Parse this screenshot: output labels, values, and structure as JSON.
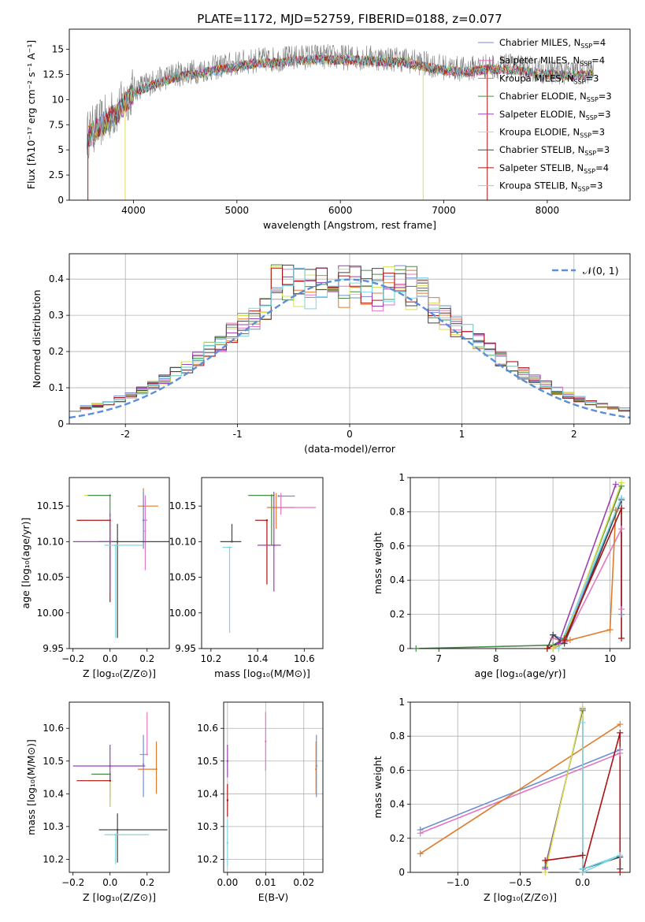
{
  "figure_title": "PLATE=1172, MJD=52759, FIBERID=0188, z=0.077",
  "colors": {
    "Chabrier MILES": "#6f8fd6",
    "Salpeter MILES": "#e377c2",
    "Kroupa MILES": "#e07b2b",
    "Chabrier ELODIE": "#4a8c4a",
    "Salpeter ELODIE": "#9b3fb5",
    "Kroupa ELODIE": "#d8e050",
    "Chabrier STELIB": "#444444",
    "Salpeter STELIB": "#b01010",
    "Kroupa STELIB": "#78d8e8",
    "normal_curve": "#5b8fd9",
    "spectrum_gray": "#808080"
  },
  "chart_data": [
    {
      "id": "spectrum",
      "type": "line",
      "xlabel": "wavelength [Angstrom, rest frame]",
      "ylabel": "Flux [fλ10⁻¹⁷ erg cm⁻² s⁻¹ A⁻¹]",
      "xlim": [
        3380,
        8800
      ],
      "ylim": [
        0,
        17
      ],
      "xticks": [
        4000,
        5000,
        6000,
        7000,
        8000
      ],
      "yticks": [
        0.0,
        2.5,
        5.0,
        7.5,
        10.0,
        12.5,
        15.0
      ],
      "grid": false,
      "legend_position": "right",
      "legend": [
        {
          "label": "Chabrier MILES, N",
          "sub": "SSP",
          "tail": "=4",
          "color_key": "Chabrier MILES"
        },
        {
          "label": "Salpeter MILES, N",
          "sub": "SSP",
          "tail": "=4",
          "color_key": "Salpeter MILES"
        },
        {
          "label": "Kroupa MILES, N",
          "sub": "SSP",
          "tail": "=3",
          "color_key": "Kroupa MILES"
        },
        {
          "label": "Chabrier ELODIE, N",
          "sub": "SSP",
          "tail": "=3",
          "color_key": "Chabrier ELODIE"
        },
        {
          "label": "Salpeter ELODIE, N",
          "sub": "SSP",
          "tail": "=3",
          "color_key": "Salpeter ELODIE"
        },
        {
          "label": "Kroupa ELODIE, N",
          "sub": "SSP",
          "tail": "=3",
          "color_key": "Kroupa ELODIE"
        },
        {
          "label": "Chabrier STELIB, N",
          "sub": "SSP",
          "tail": "=3",
          "color_key": "Chabrier STELIB"
        },
        {
          "label": "Salpeter STELIB, N",
          "sub": "SSP",
          "tail": "=4",
          "color_key": "Salpeter STELIB"
        },
        {
          "label": "Kroupa STELIB, N",
          "sub": "SSP",
          "tail": "=3",
          "color_key": "Kroupa STELIB"
        }
      ],
      "continuum_x": [
        3550,
        3700,
        3850,
        4000,
        4200,
        4400,
        4600,
        4800,
        5000,
        5200,
        5400,
        5600,
        5800,
        6000,
        6200,
        6400,
        6600,
        6800,
        7000,
        7200,
        7400,
        7600,
        7800,
        8000,
        8200,
        8400
      ],
      "continuum_y": [
        6.5,
        7.8,
        9.0,
        11.0,
        11.8,
        12.5,
        12.8,
        13.2,
        13.6,
        13.9,
        14.0,
        14.2,
        14.3,
        14.2,
        14.2,
        14.1,
        14.0,
        13.6,
        13.2,
        13.0,
        13.3,
        13.3,
        13.1,
        12.8,
        12.7,
        12.8
      ],
      "dropouts": [
        {
          "x": 3560,
          "color_key": "Salpeter STELIB"
        },
        {
          "x": 3920,
          "color_key": "Kroupa ELODIE"
        },
        {
          "x": 6800,
          "color_key": "Kroupa ELODIE"
        },
        {
          "x": 7420,
          "color_key": "Salpeter STELIB"
        }
      ]
    },
    {
      "id": "residuals",
      "type": "line",
      "xlabel": "(data-model)/error",
      "ylabel": "Normed distribution",
      "xlim": [
        -2.5,
        2.5
      ],
      "ylim": [
        0,
        0.47
      ],
      "xticks": [
        -2,
        -1,
        0,
        1,
        2
      ],
      "yticks": [
        0.0,
        0.1,
        0.2,
        0.3,
        0.4
      ],
      "grid": true,
      "legend_position": "top-right",
      "normal_label": "𝒩(0, 1)",
      "bin_width": 0.1,
      "bin_start": -2.5
    },
    {
      "id": "age_vs_Z",
      "type": "scatter",
      "xlabel": "Z [log₁₀(Z/Z⊙)]",
      "ylabel": "age  [log₁₀(age/yr)]",
      "xlim": [
        -0.22,
        0.32
      ],
      "ylim": [
        9.95,
        10.19
      ],
      "xticks": [
        -0.2,
        0.0,
        0.2
      ],
      "xticklabels": [
        "−0.2",
        "0.0",
        "0.2"
      ],
      "yticks": [
        9.95,
        10.0,
        10.05,
        10.1,
        10.15
      ],
      "yticklabels": [
        "9.95",
        "10.00",
        "10.05",
        "10.10",
        "10.15"
      ],
      "grid": false,
      "points": [
        {
          "x": 0.0,
          "y": 10.165,
          "xerr": [
            0.14,
            0.0
          ],
          "yerr": [
            0.0,
            0.0
          ],
          "color_key": "Kroupa ELODIE"
        },
        {
          "x": 0.0,
          "y": 10.165,
          "xerr": [
            0.12,
            0.0
          ],
          "yerr": [
            0.03,
            0.0
          ],
          "color_key": "Chabrier ELODIE"
        },
        {
          "x": 0.18,
          "y": 10.15,
          "xerr": [
            0.03,
            0.08
          ],
          "yerr": [
            0.06,
            0.025
          ],
          "color_key": "Kroupa MILES"
        },
        {
          "x": 0.18,
          "y": 10.13,
          "xerr": [
            0.0,
            0.02
          ],
          "yerr": [
            0.04,
            0.04
          ],
          "color_key": "Chabrier MILES"
        },
        {
          "x": 0.19,
          "y": 10.115,
          "xerr": [
            0.0,
            0.0
          ],
          "yerr": [
            0.055,
            0.05
          ],
          "color_key": "Salpeter MILES"
        },
        {
          "x": 0.0,
          "y": 10.13,
          "xerr": [
            0.18,
            0.0
          ],
          "yerr": [
            0.115,
            0.0
          ],
          "color_key": "Salpeter STELIB"
        },
        {
          "x": 0.04,
          "y": 10.1,
          "xerr": [
            0.1,
            0.29
          ],
          "yerr": [
            0.135,
            0.025
          ],
          "color_key": "Chabrier STELIB"
        },
        {
          "x": 0.0,
          "y": 10.1,
          "xerr": [
            0.2,
            0.01
          ],
          "yerr": [
            0.07,
            0.04
          ],
          "color_key": "Salpeter ELODIE"
        },
        {
          "x": 0.03,
          "y": 10.095,
          "xerr": [
            0.06,
            0.15
          ],
          "yerr": [
            0.13,
            0.0
          ],
          "color_key": "Kroupa STELIB"
        }
      ]
    },
    {
      "id": "age_vs_mass",
      "type": "scatter",
      "xlabel": "mass [log₁₀(M/M⊙)]",
      "ylabel": "",
      "xlim": [
        10.16,
        10.68
      ],
      "ylim": [
        9.95,
        10.19
      ],
      "xticks": [
        10.2,
        10.4,
        10.6
      ],
      "xticklabels": [
        "10.2",
        "10.4",
        "10.6"
      ],
      "yticks": [
        9.95,
        10.0,
        10.05,
        10.1,
        10.15
      ],
      "yticklabels": [
        "9.95",
        "10.00",
        "10.05",
        "10.10",
        "10.15"
      ],
      "grid": false,
      "points": [
        {
          "x": 10.47,
          "y": 10.165,
          "xerr": [
            0.1,
            0.0
          ],
          "yerr": [
            0.0,
            0.0
          ],
          "color_key": "Kroupa ELODIE"
        },
        {
          "x": 10.46,
          "y": 10.165,
          "xerr": [
            0.1,
            0.01
          ],
          "yerr": [
            0.07,
            0.0
          ],
          "color_key": "Chabrier ELODIE"
        },
        {
          "x": 10.48,
          "y": 10.148,
          "xerr": [
            0.04,
            0.08
          ],
          "yerr": [
            0.03,
            0.02
          ],
          "color_key": "Kroupa MILES"
        },
        {
          "x": 10.5,
          "y": 10.148,
          "xerr": [
            0.02,
            0.15
          ],
          "yerr": [
            0.01,
            0.02
          ],
          "color_key": "Salpeter MILES"
        },
        {
          "x": 10.49,
          "y": 10.164,
          "xerr": [
            0.0,
            0.07
          ],
          "yerr": [
            0.0,
            0.0
          ],
          "color_key": "Chabrier MILES"
        },
        {
          "x": 10.44,
          "y": 10.13,
          "xerr": [
            0.05,
            0.0
          ],
          "yerr": [
            0.09,
            0.0
          ],
          "color_key": "Salpeter STELIB"
        },
        {
          "x": 10.29,
          "y": 10.1,
          "xerr": [
            0.05,
            0.04
          ],
          "yerr": [
            0.0,
            0.025
          ],
          "color_key": "Chabrier STELIB"
        },
        {
          "x": 10.47,
          "y": 10.095,
          "xerr": [
            0.07,
            0.03
          ],
          "yerr": [
            0.065,
            0.075
          ],
          "color_key": "Salpeter ELODIE"
        },
        {
          "x": 10.28,
          "y": 10.092,
          "xerr": [
            0.03,
            0.01
          ],
          "yerr": [
            0.12,
            0.0
          ],
          "color_key": "Kroupa STELIB"
        }
      ]
    },
    {
      "id": "mass_weight_vs_age",
      "type": "line",
      "xlabel": "age  [log₁₀(age/yr)]",
      "ylabel": "mass weight",
      "xlim": [
        6.5,
        10.35
      ],
      "ylim": [
        0,
        1.0
      ],
      "xticks": [
        7,
        8,
        9,
        10
      ],
      "yticks": [
        0.0,
        0.2,
        0.4,
        0.6,
        0.8,
        1.0
      ],
      "grid": true,
      "series": [
        {
          "color_key": "Chabrier MILES",
          "x": [
            9.0,
            9.2,
            10.2,
            10.2
          ],
          "y": [
            0.08,
            0.05,
            0.88,
            0.2
          ]
        },
        {
          "color_key": "Salpeter MILES",
          "x": [
            9.0,
            9.2,
            10.2,
            10.2
          ],
          "y": [
            0.06,
            0.04,
            0.7,
            0.23
          ]
        },
        {
          "color_key": "Kroupa MILES",
          "x": [
            9.0,
            9.3,
            10.0,
            10.1
          ],
          "y": [
            0.0,
            0.05,
            0.11,
            0.81
          ]
        },
        {
          "color_key": "Chabrier ELODIE",
          "x": [
            6.6,
            9.0,
            9.2,
            10.2
          ],
          "y": [
            0.0,
            0.02,
            0.06,
            0.95
          ]
        },
        {
          "color_key": "Salpeter ELODIE",
          "x": [
            9.0,
            9.1,
            10.1
          ],
          "y": [
            0.0,
            0.03,
            0.96
          ]
        },
        {
          "color_key": "Kroupa ELODIE",
          "x": [
            9.0,
            9.2,
            10.2
          ],
          "y": [
            0.0,
            0.05,
            0.97
          ]
        },
        {
          "color_key": "Chabrier STELIB",
          "x": [
            8.9,
            9.0,
            9.2,
            10.2
          ],
          "y": [
            0.0,
            0.08,
            0.03,
            0.87
          ]
        },
        {
          "color_key": "Salpeter STELIB",
          "x": [
            8.9,
            9.2,
            10.2,
            10.2
          ],
          "y": [
            0.0,
            0.05,
            0.82,
            0.06
          ]
        },
        {
          "color_key": "Kroupa STELIB",
          "x": [
            9.1,
            10.2
          ],
          "y": [
            0.0,
            0.88
          ]
        }
      ]
    },
    {
      "id": "mass_vs_Z",
      "type": "scatter",
      "xlabel": "Z [log₁₀(Z/Z⊙)]",
      "ylabel": "mass [log₁₀(M/M⊙)]",
      "xlim": [
        -0.22,
        0.32
      ],
      "ylim": [
        10.16,
        10.68
      ],
      "xticks": [
        -0.2,
        0.0,
        0.2
      ],
      "xticklabels": [
        "−0.2",
        "0.0",
        "0.2"
      ],
      "yticks": [
        10.2,
        10.3,
        10.4,
        10.5,
        10.6
      ],
      "yticklabels": [
        "10.2",
        "10.3",
        "10.4",
        "10.5",
        "10.6"
      ],
      "grid": false,
      "points": [
        {
          "x": 0.2,
          "y": 10.52,
          "xerr": [
            0.04,
            0.0
          ],
          "yerr": [
            0.0,
            0.13
          ],
          "color_key": "Salpeter MILES"
        },
        {
          "x": 0.18,
          "y": 10.49,
          "xerr": [
            0.0,
            0.0
          ],
          "yerr": [
            0.1,
            0.09
          ],
          "color_key": "Chabrier MILES"
        },
        {
          "x": 0.25,
          "y": 10.475,
          "xerr": [
            0.1,
            0.0
          ],
          "yerr": [
            0.075,
            0.085
          ],
          "color_key": "Kroupa MILES"
        },
        {
          "x": 0.0,
          "y": 10.46,
          "xerr": [
            0.1,
            0.0
          ],
          "yerr": [
            0.1,
            0.0
          ],
          "color_key": "Chabrier ELODIE"
        },
        {
          "x": 0.0,
          "y": 10.485,
          "xerr": [
            0.2,
            0.19
          ],
          "yerr": [
            0.1,
            0.065
          ],
          "color_key": "Salpeter ELODIE"
        },
        {
          "x": 0.0,
          "y": 10.44,
          "xerr": [
            0.12,
            0.0
          ],
          "yerr": [
            0.08,
            0.0
          ],
          "color_key": "Kroupa ELODIE"
        },
        {
          "x": 0.04,
          "y": 10.29,
          "xerr": [
            0.1,
            0.27
          ],
          "yerr": [
            0.1,
            0.05
          ],
          "color_key": "Chabrier STELIB"
        },
        {
          "x": 0.0,
          "y": 10.44,
          "xerr": [
            0.18,
            0.0
          ],
          "yerr": [
            0.0,
            0.0
          ],
          "color_key": "Salpeter STELIB"
        },
        {
          "x": 0.03,
          "y": 10.275,
          "xerr": [
            0.06,
            0.18
          ],
          "yerr": [
            0.09,
            0.0
          ],
          "color_key": "Kroupa STELIB"
        }
      ]
    },
    {
      "id": "mass_vs_EBV",
      "type": "scatter",
      "xlabel": "E(B-V)",
      "ylabel": "",
      "xlim": [
        -0.001,
        0.025
      ],
      "ylim": [
        10.16,
        10.68
      ],
      "xticks": [
        0.0,
        0.01,
        0.02
      ],
      "xticklabels": [
        "0.00",
        "0.01",
        "0.02"
      ],
      "yticks": [
        10.2,
        10.3,
        10.4,
        10.5,
        10.6
      ],
      "yticklabels": [
        "10.2",
        "10.3",
        "10.4",
        "10.5",
        "10.6"
      ],
      "grid": true,
      "points": [
        {
          "x": 0.01,
          "y": 10.56,
          "xerr": [
            0,
            0
          ],
          "yerr": [
            0.09,
            0.09
          ],
          "color_key": "Salpeter MILES"
        },
        {
          "x": 0.0233,
          "y": 10.485,
          "xerr": [
            0,
            0
          ],
          "yerr": [
            0.095,
            0.095
          ],
          "color_key": "Chabrier MILES"
        },
        {
          "x": 0.0232,
          "y": 10.475,
          "xerr": [
            0,
            0
          ],
          "yerr": [
            0.075,
            0.085
          ],
          "color_key": "Kroupa MILES"
        },
        {
          "x": 0.0,
          "y": 10.5,
          "xerr": [
            0,
            0
          ],
          "yerr": [
            0.05,
            0.05
          ],
          "color_key": "Salpeter ELODIE"
        },
        {
          "x": 0.0,
          "y": 10.38,
          "xerr": [
            0,
            0
          ],
          "yerr": [
            0.05,
            0.05
          ],
          "color_key": "Salpeter STELIB"
        },
        {
          "x": 0.0,
          "y": 10.25,
          "xerr": [
            0,
            0
          ],
          "yerr": [
            0.07,
            0.07
          ],
          "color_key": "Kroupa STELIB"
        }
      ]
    },
    {
      "id": "mass_weight_vs_Z",
      "type": "line",
      "xlabel": "Z [log₁₀(Z/Z⊙)]",
      "ylabel": "mass weight",
      "xlim": [
        -1.38,
        0.38
      ],
      "ylim": [
        0,
        1.0
      ],
      "xticks": [
        -1.0,
        -0.5,
        0.0
      ],
      "xticklabels": [
        "−1.0",
        "−0.5",
        "0.0"
      ],
      "yticks": [
        0.0,
        0.2,
        0.4,
        0.6,
        0.8,
        1.0
      ],
      "grid": true,
      "series": [
        {
          "color_key": "Chabrier MILES",
          "x": [
            -1.3,
            0.3
          ],
          "y": [
            0.25,
            0.72
          ]
        },
        {
          "color_key": "Salpeter MILES",
          "x": [
            -1.3,
            0.3
          ],
          "y": [
            0.23,
            0.7
          ]
        },
        {
          "color_key": "Kroupa MILES",
          "x": [
            -1.3,
            0.3
          ],
          "y": [
            0.11,
            0.87
          ]
        },
        {
          "color_key": "Chabrier ELODIE",
          "x": [
            -0.3,
            0.0,
            0.0
          ],
          "y": [
            0.03,
            0.95,
            0.02
          ]
        },
        {
          "color_key": "Salpeter ELODIE",
          "x": [
            -0.3,
            0.0,
            0.0
          ],
          "y": [
            0.02,
            0.96,
            0.02
          ]
        },
        {
          "color_key": "Kroupa ELODIE",
          "x": [
            -0.3,
            0.0,
            0.0
          ],
          "y": [
            0.0,
            0.97,
            0.0
          ]
        },
        {
          "color_key": "Chabrier STELIB",
          "x": [
            0.0,
            0.3,
            0.3
          ],
          "y": [
            0.02,
            0.09,
            0.02
          ]
        },
        {
          "color_key": "Salpeter STELIB",
          "x": [
            -0.3,
            0.0,
            0.0,
            0.3,
            0.3
          ],
          "y": [
            0.07,
            0.1,
            0.0,
            0.82,
            0.0
          ]
        },
        {
          "color_key": "Kroupa STELIB",
          "x": [
            0.0,
            0.3,
            0.0,
            0.0
          ],
          "y": [
            0.02,
            0.1,
            0.0,
            0.88
          ]
        }
      ]
    }
  ]
}
